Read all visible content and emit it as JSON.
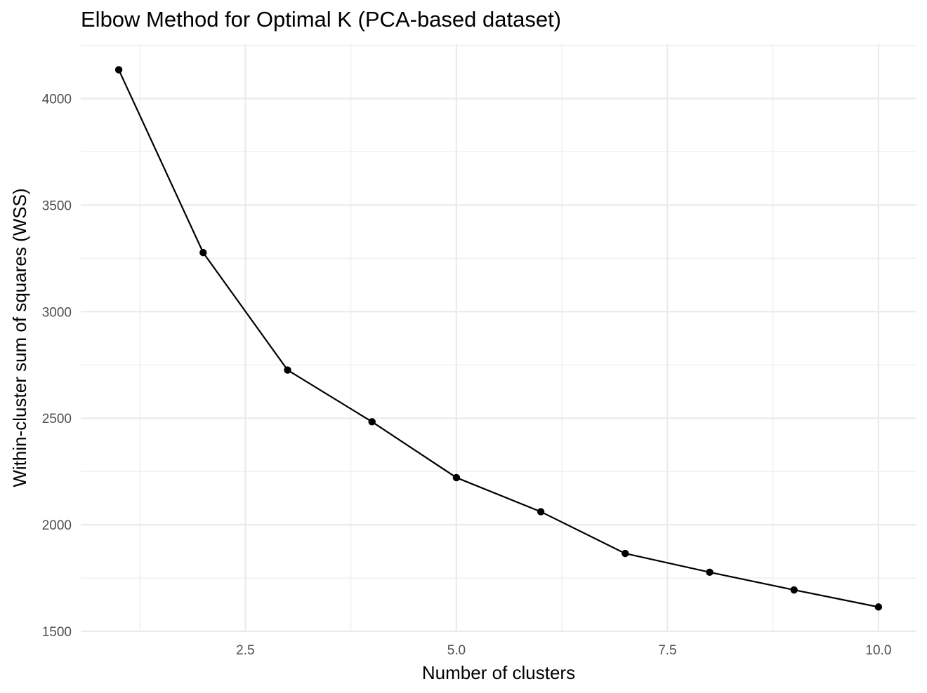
{
  "chart_data": {
    "type": "line",
    "title": "Elbow Method for Optimal K (PCA-based dataset)",
    "xlabel": "Number of clusters",
    "ylabel": "Within-cluster sum of squares (WSS)",
    "x": [
      1,
      2,
      3,
      4,
      5,
      6,
      7,
      8,
      9,
      10
    ],
    "series": [
      {
        "name": "WSS",
        "values": [
          4135,
          3277,
          2726,
          2483,
          2221,
          2061,
          1865,
          1777,
          1694,
          1614
        ]
      }
    ],
    "xlim": [
      0.55,
      10.45
    ],
    "ylim": [
      1500,
      4255
    ],
    "x_ticks": [
      2.5,
      5.0,
      7.5,
      10.0
    ],
    "x_tick_labels": [
      "2.5",
      "5.0",
      "7.5",
      "10.0"
    ],
    "y_ticks": [
      1500,
      2000,
      2500,
      3000,
      3500,
      4000
    ],
    "y_tick_labels": [
      "1500",
      "2000",
      "2500",
      "3000",
      "3500",
      "4000"
    ],
    "grid": true,
    "line_color": "#000000",
    "grid_color": "#ebebeb",
    "background": "#ffffff"
  }
}
